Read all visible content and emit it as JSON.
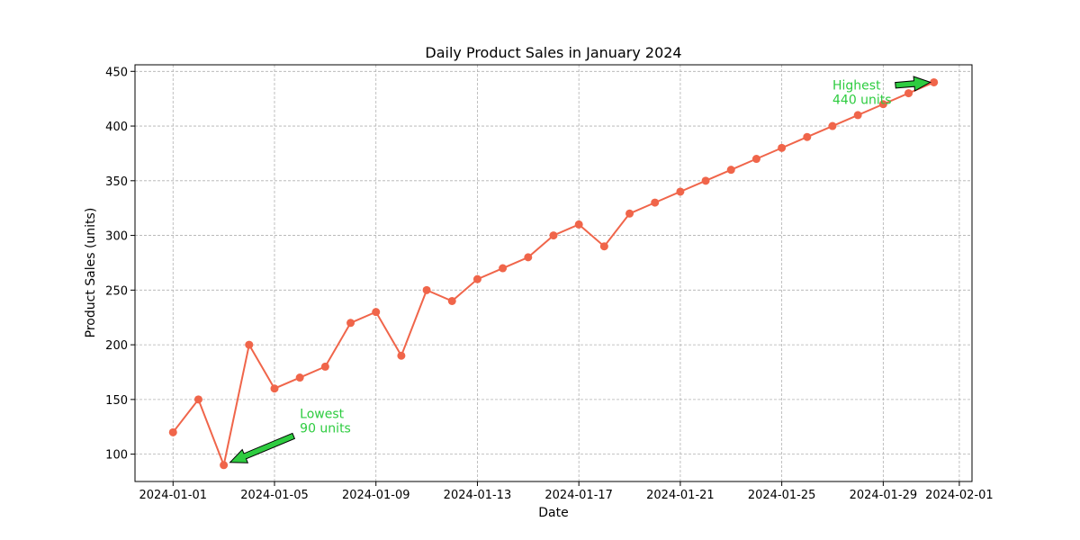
{
  "chart_data": {
    "type": "line",
    "title": "Daily Product Sales in January 2024",
    "xlabel": "Date",
    "ylabel": "Product Sales (units)",
    "x": [
      "2024-01-01",
      "2024-01-02",
      "2024-01-03",
      "2024-01-04",
      "2024-01-05",
      "2024-01-06",
      "2024-01-07",
      "2024-01-08",
      "2024-01-09",
      "2024-01-10",
      "2024-01-11",
      "2024-01-12",
      "2024-01-13",
      "2024-01-14",
      "2024-01-15",
      "2024-01-16",
      "2024-01-17",
      "2024-01-18",
      "2024-01-19",
      "2024-01-20",
      "2024-01-21",
      "2024-01-22",
      "2024-01-23",
      "2024-01-24",
      "2024-01-25",
      "2024-01-26",
      "2024-01-27",
      "2024-01-28",
      "2024-01-29",
      "2024-01-30",
      "2024-01-31"
    ],
    "series": [
      {
        "values": [
          120,
          150,
          90,
          200,
          160,
          170,
          180,
          220,
          230,
          190,
          250,
          240,
          260,
          270,
          280,
          300,
          310,
          290,
          320,
          330,
          340,
          350,
          360,
          370,
          380,
          390,
          400,
          410,
          420,
          430,
          440
        ],
        "color": "#f0654a"
      }
    ],
    "xlim": [
      "2023-12-30T12:00",
      "2024-02-01T12:00"
    ],
    "ylim": [
      75,
      456
    ],
    "x_ticks": [
      "2024-01-01",
      "2024-01-05",
      "2024-01-09",
      "2024-01-13",
      "2024-01-17",
      "2024-01-21",
      "2024-01-25",
      "2024-01-29",
      "2024-02-01"
    ],
    "y_ticks": [
      100,
      150,
      200,
      250,
      300,
      350,
      400,
      450
    ],
    "grid": true,
    "annotations": [
      {
        "lines": [
          "Lowest",
          "90 units"
        ],
        "point": {
          "x": "2024-01-03",
          "y": 90
        },
        "text_at": {
          "x": "2024-01-06",
          "y": 120
        },
        "color": "#2ecc40",
        "arrow_color": "#2ecc40"
      },
      {
        "lines": [
          "Highest",
          "440 units"
        ],
        "point": {
          "x": "2024-01-31",
          "y": 440
        },
        "text_at": {
          "x": "2024-01-27",
          "y": 420
        },
        "color": "#2ecc40",
        "arrow_color": "#2ecc40"
      }
    ]
  }
}
